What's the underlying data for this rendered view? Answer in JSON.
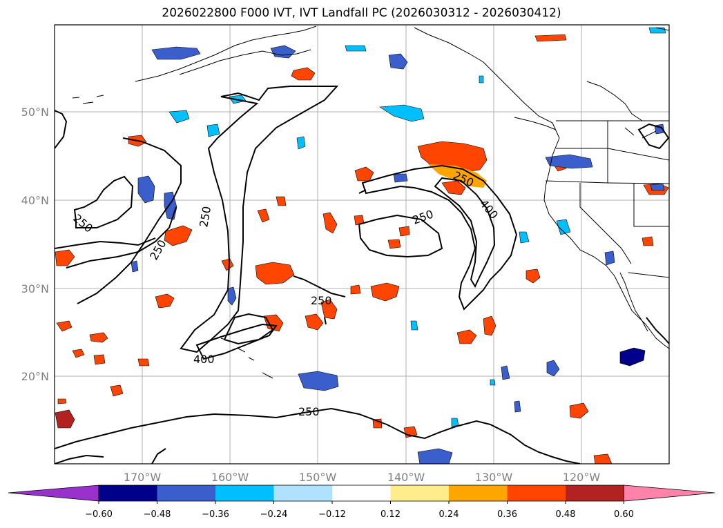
{
  "title": "2026022800 F000 IVT, IVT Landfall PC (2026030312 - 2026030412)",
  "lon_labels": [
    "170°W",
    "160°W",
    "150°W",
    "140°W",
    "130°W",
    "120°W"
  ],
  "lat_labels": [
    "50°N",
    "40°N",
    "30°N",
    "20°N"
  ],
  "contour_labels": [
    "250",
    "250",
    "250",
    "250",
    "250",
    "250",
    "400",
    "400",
    "250"
  ],
  "colorbar": {
    "ticks": [
      "−0.60",
      "−0.48",
      "−0.36",
      "−0.24",
      "−0.12",
      "0.12",
      "0.24",
      "0.36",
      "0.48",
      "0.60"
    ],
    "colors": [
      "#9932cc",
      "#00008b",
      "#3a5fcd",
      "#00bfff",
      "#b0e2ff",
      "#ffffff",
      "#ffec8b",
      "#ffa500",
      "#ff4500",
      "#b22222",
      "#ff82ab"
    ]
  }
}
